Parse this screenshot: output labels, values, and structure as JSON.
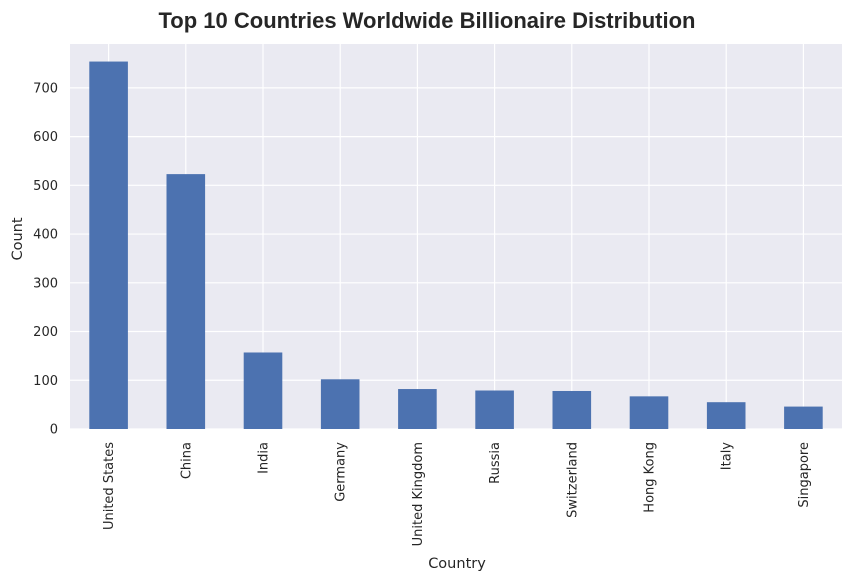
{
  "colors": {
    "background": "#ffffff",
    "plot_area": "#eaeaf2",
    "grid": "#ffffff",
    "bar": "#4c72b0",
    "text": "#262626"
  },
  "chart_data": {
    "type": "bar",
    "title": "Top 10 Countries Worldwide Billionaire Distribution",
    "xlabel": "Country",
    "ylabel": "Count",
    "categories": [
      "United States",
      "China",
      "India",
      "Germany",
      "United Kingdom",
      "Russia",
      "Switzerland",
      "Hong Kong",
      "Italy",
      "Singapore"
    ],
    "values": [
      754,
      523,
      157,
      102,
      82,
      79,
      78,
      67,
      55,
      46
    ],
    "ylim": [
      0,
      790
    ],
    "yticks": [
      0,
      100,
      200,
      300,
      400,
      500,
      600,
      700
    ],
    "grid": true,
    "legend": "none"
  }
}
